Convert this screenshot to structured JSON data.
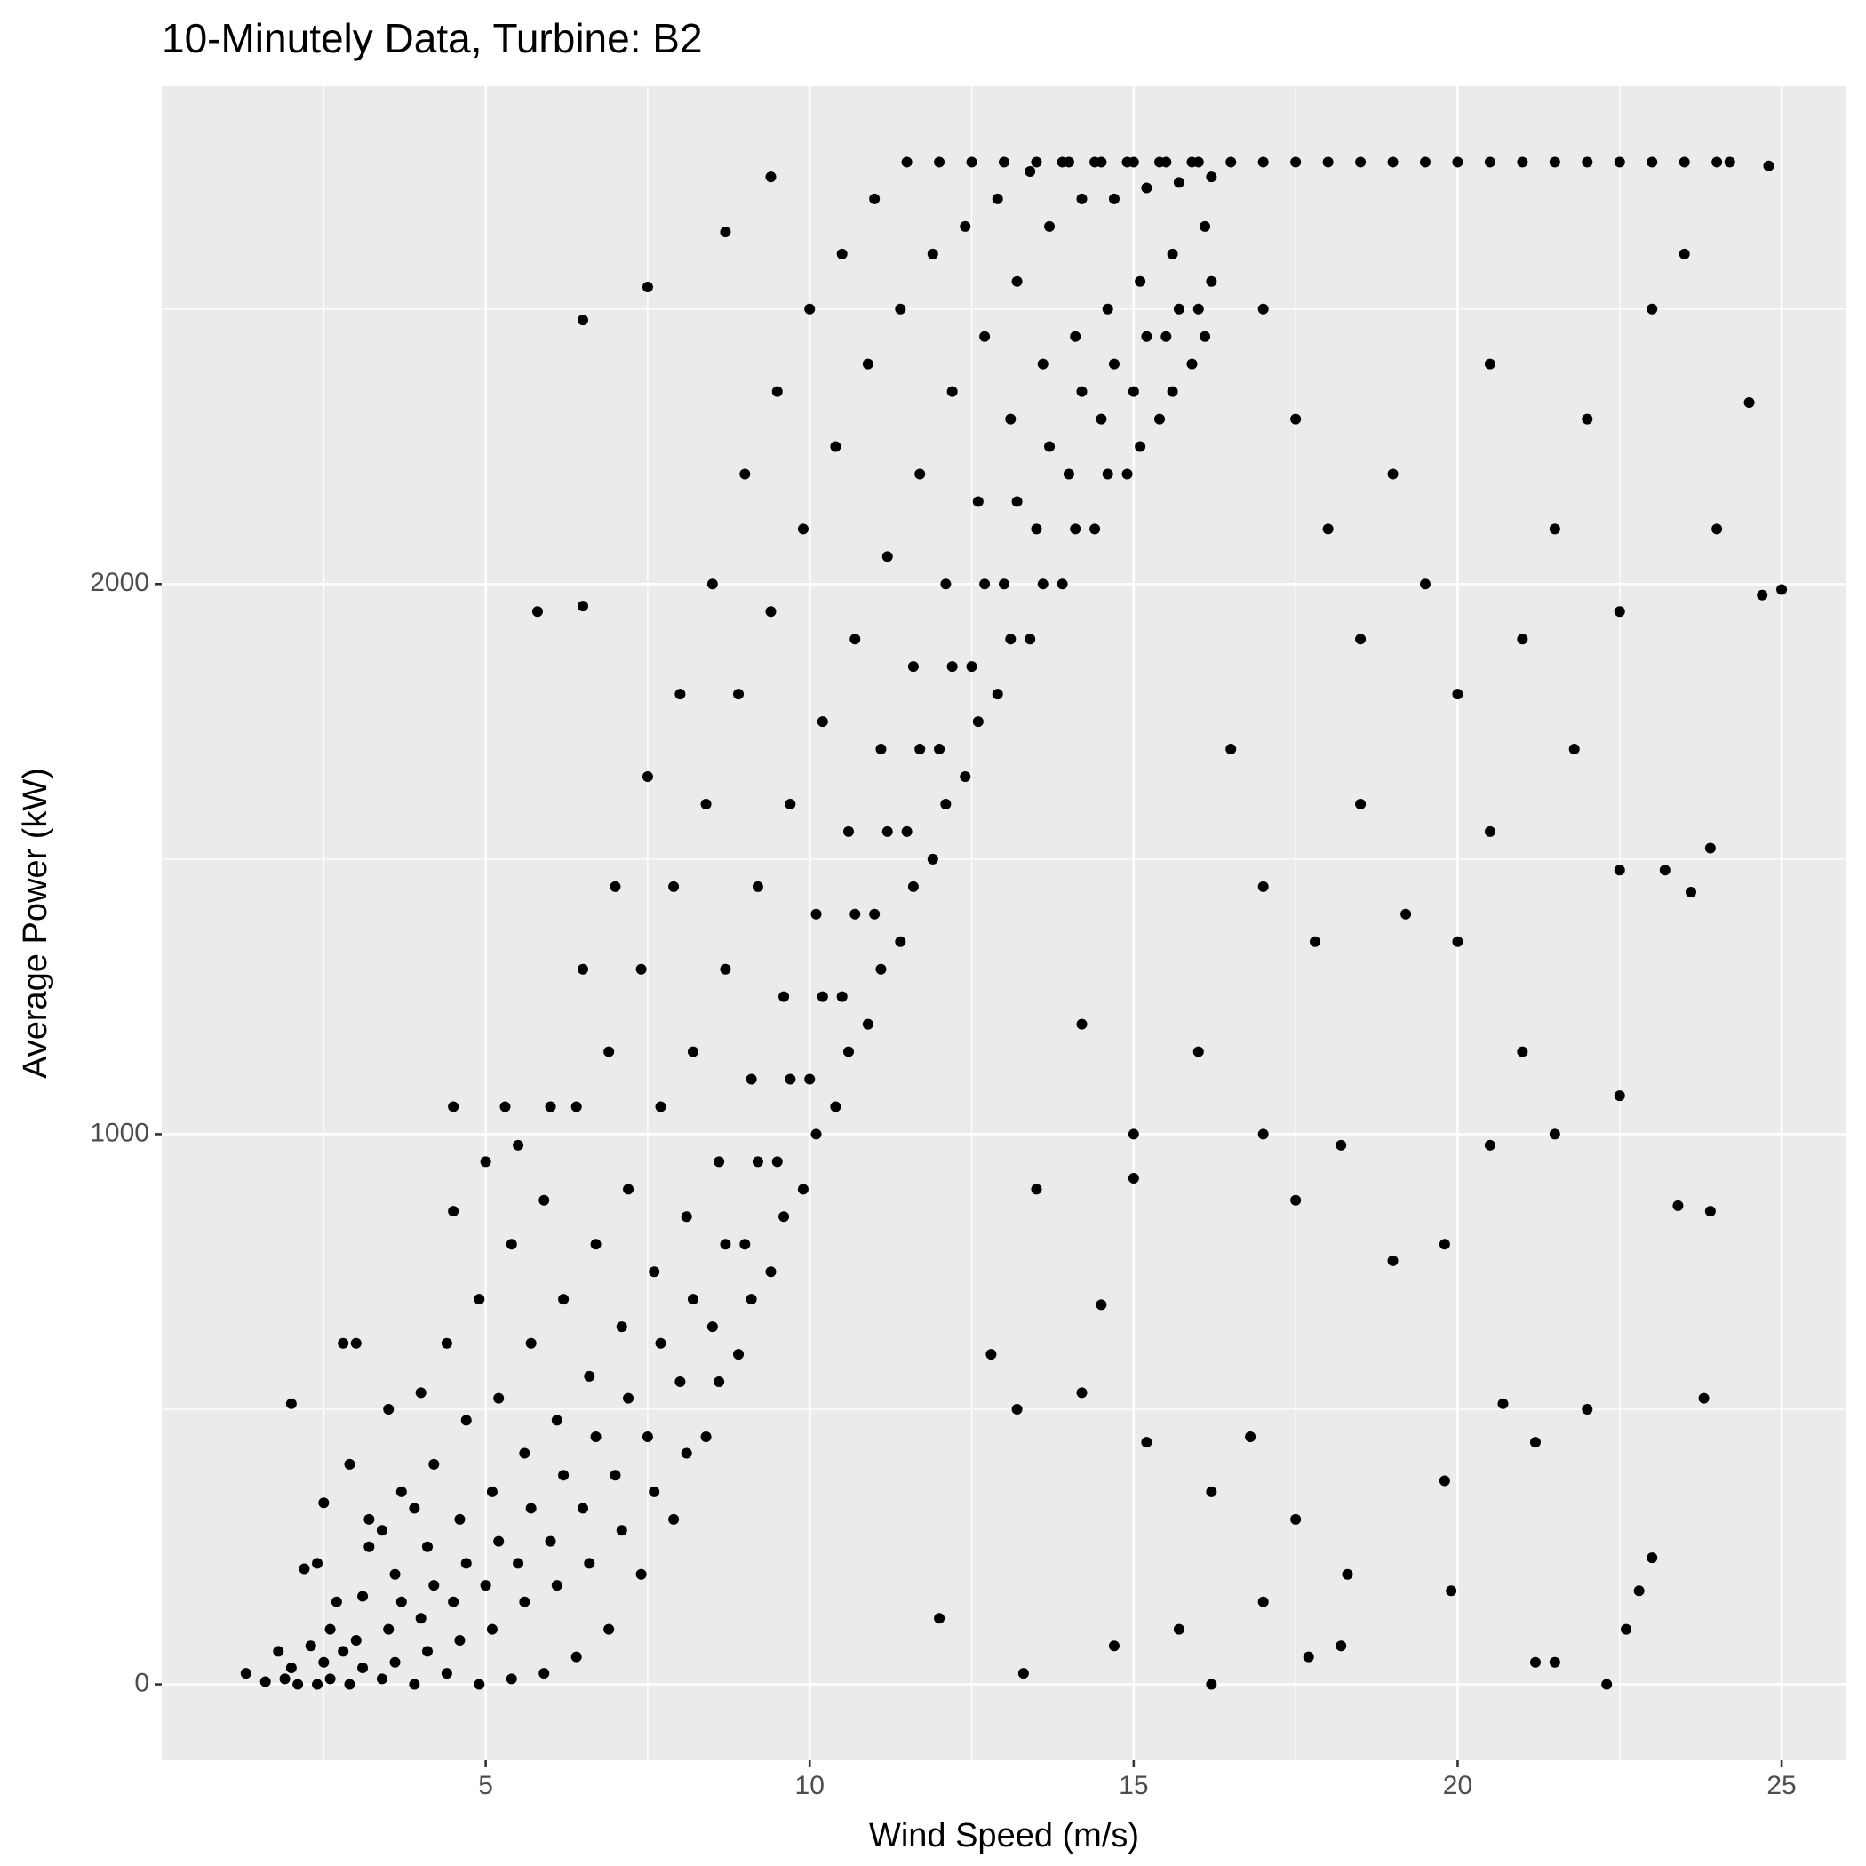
{
  "chart_data": {
    "type": "scatter",
    "title": "10-Minutely Data, Turbine: B2",
    "x_label": "Wind Speed (m/s)",
    "y_label": "Average Power (kW)",
    "xlim": [
      0,
      26
    ],
    "ylim": [
      -138,
      2905
    ],
    "xticks": [
      5,
      10,
      15,
      20,
      25
    ],
    "yticks": [
      0,
      1000,
      2000
    ],
    "x_minor_grid": [
      2.5,
      7.5,
      12.5,
      17.5,
      22.5
    ],
    "y_minor_grid": [
      500,
      1500,
      2500
    ],
    "grid": true,
    "color": "#000000",
    "background": "#ebebeb",
    "x": [
      1.3,
      1.6,
      1.8,
      2.0,
      2.1,
      2.3,
      2.2,
      1.9,
      2.4,
      2.5,
      2.6,
      2.7,
      2.5,
      2.6,
      2.4,
      2.8,
      2.9,
      3.0,
      3.1,
      3.2,
      3.0,
      3.1,
      2.9,
      3.2,
      3.4,
      3.5,
      3.6,
      3.7,
      3.5,
      3.6,
      3.4,
      3.7,
      3.9,
      4.0,
      4.1,
      4.2,
      4.0,
      4.1,
      3.9,
      4.2,
      4.4,
      4.5,
      4.6,
      4.7,
      4.5,
      4.6,
      4.4,
      4.7,
      4.9,
      5.0,
      5.1,
      5.2,
      5.0,
      5.1,
      4.9,
      5.2,
      5.4,
      5.5,
      5.6,
      5.7,
      5.5,
      5.6,
      5.4,
      5.7,
      5.9,
      6.0,
      6.1,
      6.2,
      6.0,
      6.1,
      5.9,
      6.2,
      6.4,
      6.5,
      6.6,
      6.7,
      6.5,
      6.6,
      6.4,
      6.7,
      6.9,
      7.0,
      7.1,
      7.2,
      7.0,
      7.1,
      6.9,
      7.2,
      7.4,
      7.5,
      7.6,
      7.7,
      7.5,
      7.6,
      7.4,
      7.7,
      7.9,
      8.0,
      8.1,
      8.2,
      8.0,
      8.1,
      7.9,
      8.2,
      8.4,
      8.5,
      8.6,
      8.7,
      8.5,
      8.6,
      8.4,
      8.7,
      8.9,
      9.0,
      9.1,
      9.2,
      9.0,
      9.1,
      8.9,
      9.2,
      9.4,
      9.5,
      9.6,
      9.7,
      9.5,
      9.6,
      9.4,
      9.7,
      9.9,
      10.0,
      10.1,
      10.2,
      10.0,
      10.1,
      9.9,
      10.2,
      10.4,
      10.5,
      10.6,
      10.7,
      10.5,
      10.6,
      10.4,
      10.7,
      10.9,
      11.0,
      11.1,
      11.2,
      11.0,
      11.1,
      10.9,
      11.2,
      11.4,
      11.5,
      11.6,
      11.7,
      11.5,
      11.6,
      11.4,
      11.7,
      11.9,
      12.0,
      12.1,
      12.2,
      12.0,
      12.1,
      11.9,
      12.2,
      12.4,
      12.5,
      12.6,
      12.7,
      12.5,
      12.6,
      12.4,
      12.7,
      12.9,
      13.0,
      13.1,
      13.2,
      13.0,
      13.1,
      12.9,
      13.2,
      13.4,
      13.5,
      13.6,
      13.7,
      13.5,
      13.6,
      13.4,
      13.7,
      13.9,
      14.0,
      14.1,
      14.2,
      14.0,
      14.1,
      13.9,
      14.2,
      14.4,
      14.5,
      14.6,
      14.7,
      14.5,
      14.6,
      14.4,
      14.7,
      14.9,
      15.0,
      15.1,
      15.2,
      15.0,
      15.1,
      14.9,
      15.2,
      15.4,
      15.5,
      15.6,
      15.7,
      15.5,
      15.6,
      15.4,
      15.7,
      15.9,
      16.0,
      16.1,
      16.2,
      16.0,
      16.1,
      15.9,
      16.2,
      16.5,
      17,
      17.5,
      18,
      18.5,
      19,
      19.5,
      20,
      20.5,
      21,
      21.5,
      22,
      22.5,
      23,
      23.5,
      24,
      24.2,
      24.8,
      17,
      17.5,
      18,
      18.5,
      19,
      19.5,
      20,
      20.5,
      21,
      21.5,
      22,
      22.5,
      23,
      23.5,
      24,
      24.5,
      25,
      24.7,
      16.5,
      17,
      17.8,
      18.5,
      19.2,
      20,
      20.5,
      21,
      21.8,
      22.5,
      23.2,
      23.6,
      23.9,
      14.2,
      15,
      16,
      17,
      17.5,
      18.2,
      19,
      19.8,
      20.5,
      21.5,
      22.5,
      23.4,
      23.9,
      13.5,
      14.5,
      15,
      12.8,
      13.2,
      14.2,
      15.2,
      16.2,
      16.8,
      17.5,
      18.3,
      19.8,
      20.7,
      21.2,
      22,
      23,
      23.8,
      12,
      13.3,
      14.7,
      15.7,
      16.2,
      17,
      17.7,
      18.2,
      19.9,
      21.2,
      21.5,
      22.3,
      22.6,
      22.8,
      9.4,
      8.7,
      6.5,
      7.5,
      5.3,
      4.5,
      2.8,
      2.0,
      6.5,
      5.8
    ],
    "values": [
      20,
      5,
      60,
      30,
      0,
      70,
      210,
      10,
      0,
      40,
      100,
      150,
      330,
      10,
      220,
      60,
      0,
      80,
      160,
      250,
      620,
      30,
      400,
      300,
      10,
      100,
      200,
      350,
      500,
      40,
      280,
      150,
      0,
      120,
      250,
      400,
      530,
      60,
      320,
      180,
      20,
      150,
      300,
      480,
      860,
      80,
      620,
      220,
      0,
      180,
      350,
      520,
      950,
      100,
      700,
      260,
      10,
      220,
      420,
      620,
      980,
      150,
      800,
      320,
      20,
      260,
      480,
      700,
      1050,
      180,
      880,
      380,
      50,
      320,
      560,
      800,
      1300,
      220,
      1050,
      450,
      100,
      380,
      650,
      900,
      1450,
      280,
      1150,
      520,
      200,
      450,
      750,
      1050,
      1650,
      350,
      1300,
      620,
      300,
      550,
      850,
      1150,
      1800,
      420,
      1450,
      700,
      450,
      650,
      950,
      1300,
      2000,
      550,
      1600,
      800,
      600,
      800,
      1100,
      1450,
      2200,
      700,
      1800,
      950,
      750,
      950,
      1250,
      1600,
      2350,
      850,
      1950,
      1100,
      900,
      1100,
      1400,
      1750,
      2500,
      1000,
      2100,
      1250,
      1050,
      1250,
      1550,
      1900,
      2600,
      1150,
      2250,
      1400,
      1200,
      1400,
      1700,
      2050,
      2700,
      1300,
      2400,
      1550,
      1350,
      1550,
      1850,
      2200,
      2767,
      1450,
      2500,
      1700,
      1500,
      1700,
      2000,
      2350,
      2767,
      1600,
      2600,
      1850,
      1650,
      1850,
      2150,
      2450,
      2767,
      1750,
      2650,
      2000,
      1800,
      2000,
      2300,
      2550,
      2767,
      1900,
      2700,
      2150,
      1900,
      2100,
      2400,
      2650,
      2767,
      2000,
      2750,
      2250,
      2000,
      2200,
      2450,
      2700,
      2767,
      2100,
      2767,
      2350,
      2100,
      2300,
      2500,
      2700,
      2767,
      2200,
      2767,
      2400,
      2200,
      2350,
      2550,
      2720,
      2767,
      2250,
      2767,
      2450,
      2300,
      2450,
      2600,
      2730,
      2767,
      2350,
      2767,
      2500,
      2400,
      2500,
      2650,
      2740,
      2767,
      2450,
      2767,
      2550,
      2767,
      2767,
      2767,
      2767,
      2767,
      2767,
      2767,
      2767,
      2767,
      2767,
      2767,
      2767,
      2767,
      2767,
      2767,
      2767,
      2767,
      2760,
      2500,
      2300,
      2100,
      1900,
      2200,
      2000,
      1800,
      2400,
      1900,
      2100,
      2300,
      1950,
      2500,
      2600,
      2100,
      2330,
      1990,
      1980,
      1700,
      1450,
      1350,
      1600,
      1400,
      1350,
      1550,
      1150,
      1700,
      1480,
      1480,
      1440,
      1520,
      1200,
      1000,
      1150,
      1000,
      880,
      980,
      770,
      800,
      980,
      1000,
      1070,
      870,
      860,
      900,
      690,
      920,
      600,
      500,
      530,
      440,
      350,
      450,
      300,
      200,
      370,
      510,
      440,
      500,
      230,
      520,
      120,
      20,
      70,
      100,
      0,
      150,
      50,
      70,
      170,
      40,
      40,
      0,
      100,
      170,
      2740,
      2640,
      2480,
      2540,
      1050,
      1050,
      620,
      510,
      1960,
      1950
    ]
  }
}
